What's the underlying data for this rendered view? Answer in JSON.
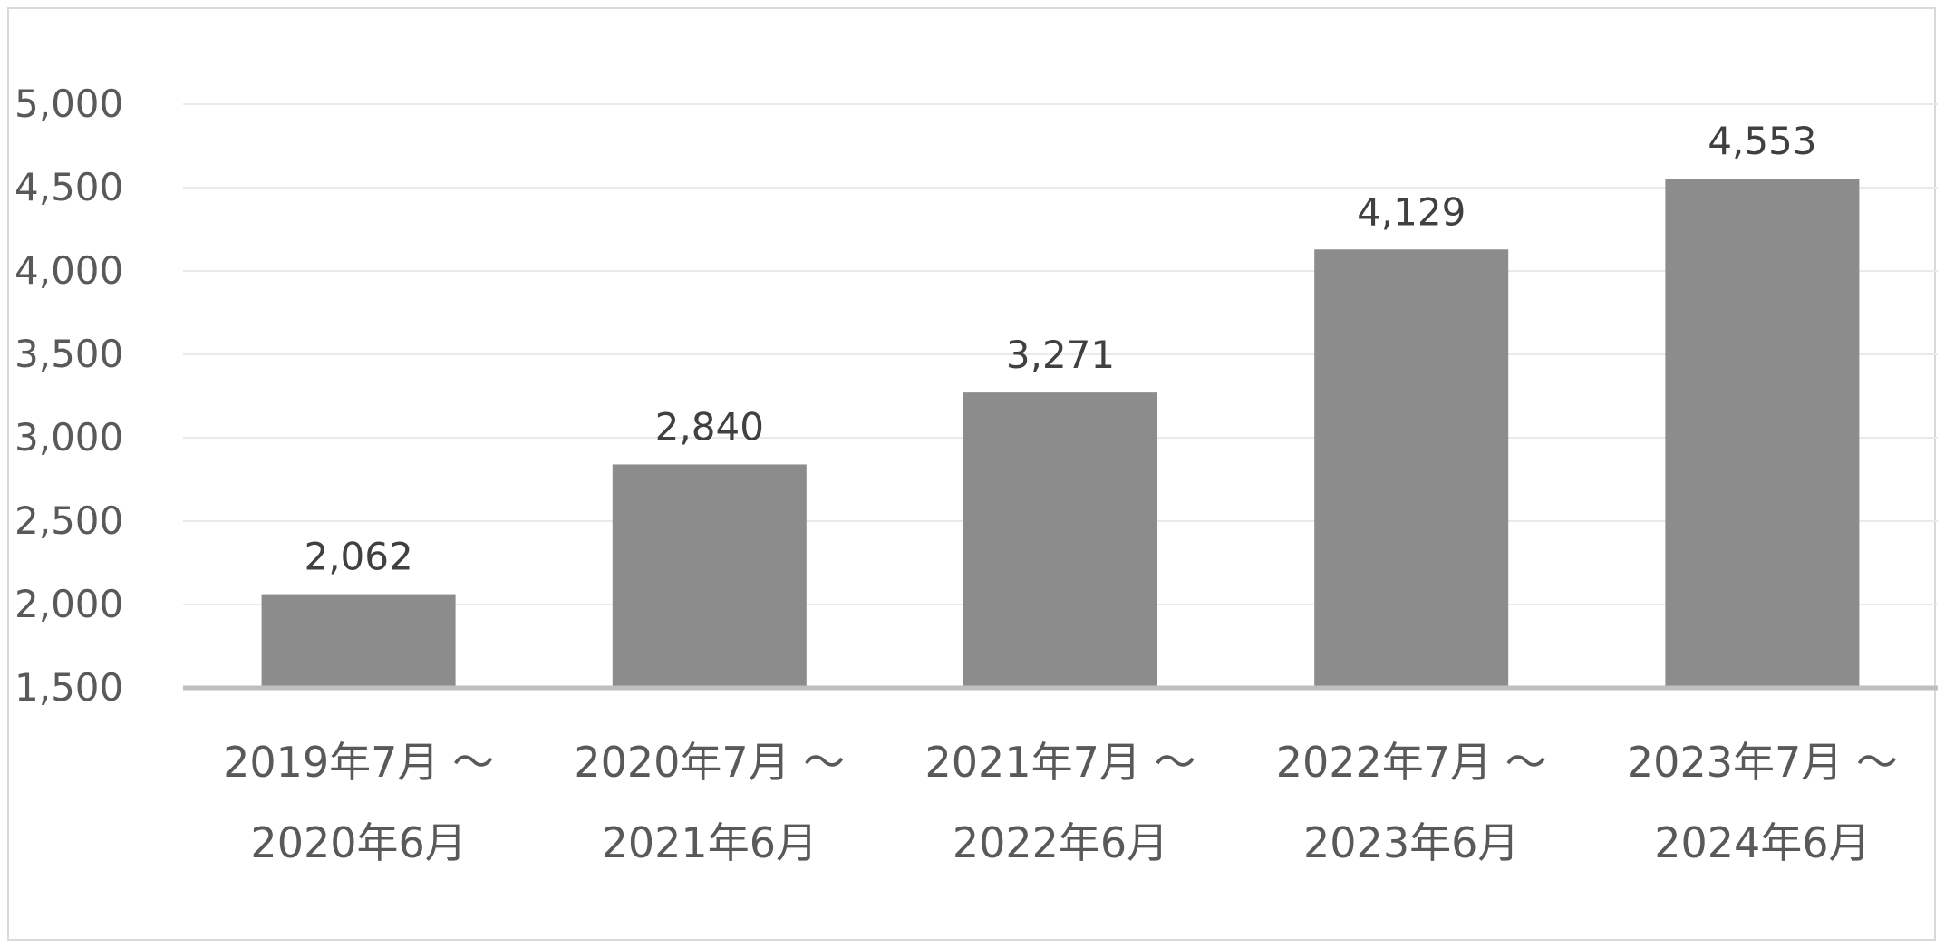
{
  "chart_data": {
    "type": "bar",
    "title": "",
    "xlabel": "",
    "ylabel": "",
    "categories": [
      [
        "2019年7月 ～",
        "2020年6月"
      ],
      [
        "2020年7月 ～",
        "2021年6月"
      ],
      [
        "2021年7月 ～",
        "2022年6月"
      ],
      [
        "2022年7月 ～",
        "2023年6月"
      ],
      [
        "2023年7月 ～",
        "2024年6月"
      ]
    ],
    "values": [
      2062,
      2840,
      3271,
      4129,
      4553
    ],
    "data_labels": [
      "2,062",
      "2,840",
      "3,271",
      "4,129",
      "4,553"
    ],
    "ylim": [
      1500,
      5000
    ],
    "yticks": [
      1500,
      2000,
      2500,
      3000,
      3500,
      4000,
      4500,
      5000
    ],
    "ytick_labels": [
      "1,500",
      "2,000",
      "2,500",
      "3,000",
      "3,500",
      "4,000",
      "4,500",
      "5,000"
    ],
    "grid": true,
    "legend": "none",
    "colors": {
      "bar": "#8c8c8c",
      "grid": "#eaeaea",
      "axis": "#bfbfbf",
      "tick_text": "#595959",
      "label_text": "#404040"
    }
  }
}
